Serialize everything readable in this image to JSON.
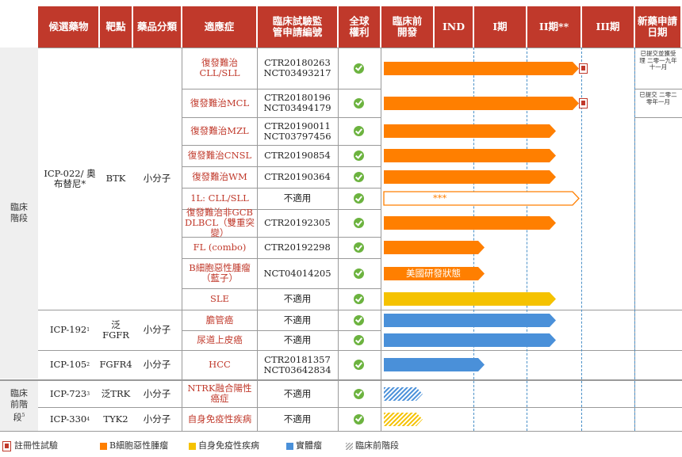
{
  "headers": {
    "candidate": "候選藥物",
    "target": "靶點",
    "category": "藥品分類",
    "indication": "適應症",
    "trial_no": "臨床試驗監管申請編號",
    "rights": "全球權利",
    "preclinical": "臨床前開發",
    "ind": "IND",
    "phase1": "I期",
    "phase2": "II期**",
    "phase3": "III期",
    "nda": "新藥申請日期"
  },
  "stages": {
    "clinical": "臨床階段",
    "preclinical": "臨床前階段",
    "preclinical_sup": "5"
  },
  "drugs": {
    "icp022": {
      "name": "ICP-022/ 奧布替尼*",
      "target": "BTK",
      "category": "小分子"
    },
    "icp192": {
      "name": "ICP-192",
      "sup": "1",
      "target": "泛FGFR",
      "category": "小分子"
    },
    "icp105": {
      "name": "ICP-105",
      "sup": "2",
      "target": "FGFR4",
      "category": "小分子"
    },
    "icp723": {
      "name": "ICP-723",
      "sup": "3",
      "target": "泛TRK",
      "category": "小分子"
    },
    "icp330": {
      "name": "ICP-330",
      "sup": "4",
      "target": "TYK2",
      "category": "小分子"
    }
  },
  "rows": [
    {
      "indication": "復發難治CLL/SLL",
      "trial": "CTR20180263 NCT03493217",
      "bar_type": "b_cell",
      "progress_end": "III期",
      "registration_trial": true,
      "nda_note": "已提交並獲受理 二零一九年 十一月"
    },
    {
      "indication": "復發難治MCL",
      "trial": "CTR20180196 NCT03494179",
      "bar_type": "b_cell",
      "progress_end": "III期",
      "registration_trial": true,
      "nda_note": "已提交 二零二零年一月"
    },
    {
      "indication": "復發難治MZL",
      "trial": "CTR20190011 NCT03797456",
      "bar_type": "b_cell",
      "progress_end": "II期**",
      "registration_trial": false,
      "nda_note": ""
    },
    {
      "indication": "復發難治CNSL",
      "trial": "CTR20190854",
      "bar_type": "b_cell",
      "progress_end": "II期**",
      "registration_trial": false,
      "nda_note": ""
    },
    {
      "indication": "復發難治WM",
      "trial": "CTR20190364",
      "bar_type": "b_cell",
      "progress_end": "II期**",
      "registration_trial": false,
      "nda_note": ""
    },
    {
      "indication": "1L: CLL/SLL",
      "trial": "不適用",
      "bar_type": "b_cell_outline",
      "bar_label": "***",
      "progress_end": "III期",
      "registration_trial": false,
      "nda_note": ""
    },
    {
      "indication": "復發難治非GCB DLBCL（雙重突變）",
      "trial": "CTR20192305",
      "bar_type": "b_cell",
      "progress_end": "II期**",
      "registration_trial": false,
      "nda_note": ""
    },
    {
      "indication": "FL (combo)",
      "trial": "CTR20192298",
      "bar_type": "b_cell",
      "progress_end": "I期",
      "registration_trial": false,
      "nda_note": ""
    },
    {
      "indication": "B細胞惡性腫瘤（藍子）",
      "trial": "NCT04014205",
      "bar_type": "b_cell",
      "bar_label": "美國研發狀態",
      "progress_end": "I期",
      "registration_trial": false,
      "nda_note": ""
    },
    {
      "indication": "SLE",
      "trial": "不適用",
      "bar_type": "autoimmune",
      "progress_end": "II期**",
      "registration_trial": false,
      "nda_note": ""
    },
    {
      "indication": "膽管癌",
      "trial": "不適用",
      "bar_type": "solid",
      "progress_end": "II期**",
      "registration_trial": false,
      "nda_note": ""
    },
    {
      "indication": "尿道上皮癌",
      "trial": "不適用",
      "bar_type": "solid",
      "progress_end": "II期**",
      "registration_trial": false,
      "nda_note": ""
    },
    {
      "indication": "HCC",
      "trial": "CTR20181357 NCT03642834",
      "bar_type": "solid",
      "progress_end": "I期",
      "registration_trial": false,
      "nda_note": ""
    },
    {
      "indication": "NTRK融合陽性癌症",
      "trial": "不適用",
      "bar_type": "solid_preclinical",
      "progress_end": "臨床前開發",
      "registration_trial": false,
      "nda_note": ""
    },
    {
      "indication": "自身免疫性疾病",
      "trial": "不適用",
      "bar_type": "autoimmune_preclinical",
      "progress_end": "臨床前開發",
      "registration_trial": false,
      "nda_note": ""
    }
  ],
  "legend": {
    "registration": "註冊性試驗",
    "b_cell": "B細胞惡性腫瘤",
    "autoimmune": "自身免疫性疾病",
    "solid": "實體瘤",
    "preclinical": "臨床前階段"
  },
  "colors": {
    "header": "#C0392B",
    "b_cell": "#FF7F00",
    "autoimmune": "#F5C200",
    "solid": "#4A90D9",
    "check": "#6CB33F",
    "dashed_line": "#4A90C8"
  }
}
